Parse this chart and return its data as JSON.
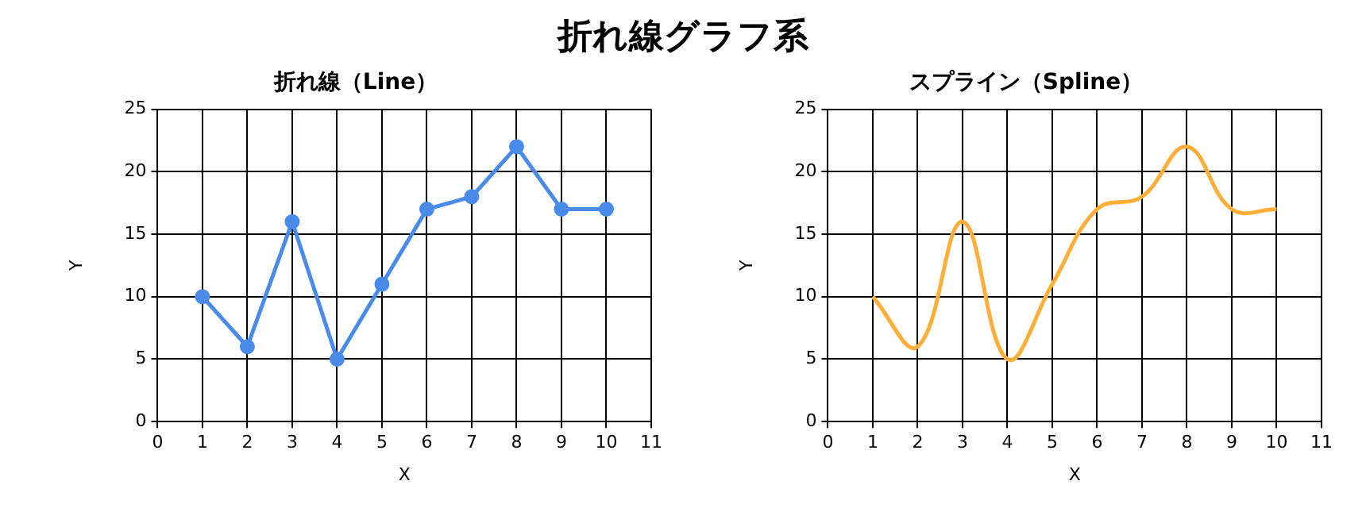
{
  "chart_data": [
    {
      "type": "line",
      "title": "折れ線（Line）",
      "annotations": [
        "折れ線グラフ系"
      ],
      "xlabel": "X",
      "ylabel": "Y",
      "x": [
        1,
        2,
        3,
        4,
        5,
        6,
        7,
        8,
        9,
        10
      ],
      "series": [
        {
          "color": "#4a8ae8",
          "values": [
            10,
            6,
            16,
            5,
            11,
            17,
            18,
            22,
            17,
            17
          ]
        }
      ],
      "xlim": [
        0,
        11
      ],
      "xticks": [
        0,
        1,
        2,
        3,
        4,
        5,
        6,
        7,
        8,
        9,
        10,
        11
      ],
      "ylim": [
        0,
        25
      ],
      "yticks": [
        0,
        5,
        10,
        15,
        20,
        25
      ],
      "grid": true,
      "marker": "circle",
      "line_style": "solid"
    },
    {
      "type": "line",
      "title": "スプライン（Spline）",
      "xlabel": "X",
      "ylabel": "Y",
      "x": [
        1,
        2,
        3,
        4,
        5,
        6,
        7,
        8,
        9,
        10
      ],
      "series": [
        {
          "color": "#ffae3a",
          "values": [
            10,
            6,
            16,
            5,
            11,
            17,
            18,
            22,
            17,
            17
          ]
        }
      ],
      "xlim": [
        0,
        11
      ],
      "xticks": [
        0,
        1,
        2,
        3,
        4,
        5,
        6,
        7,
        8,
        9,
        10,
        11
      ],
      "ylim": [
        0,
        25
      ],
      "yticks": [
        0,
        5,
        10,
        15,
        20,
        25
      ],
      "grid": true,
      "marker": "none",
      "line_style": "solid"
    }
  ]
}
